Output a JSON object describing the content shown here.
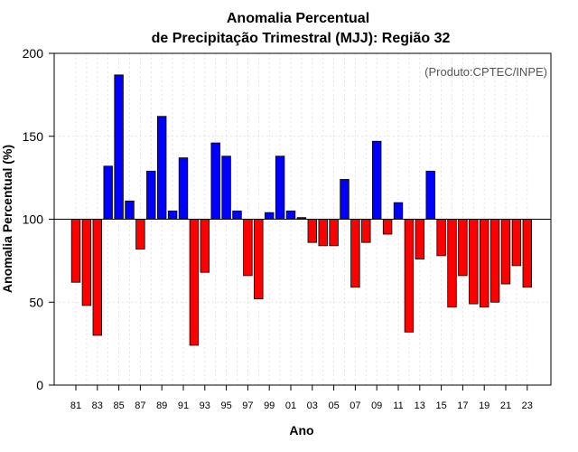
{
  "chart_data": {
    "type": "bar",
    "title": [
      "Anomalia Percentual",
      "de Precipitação Trimestral (MJJ): Região 32"
    ],
    "xlabel": "Ano",
    "ylabel": "Anomalia Percentual (%)",
    "credit": "(Produto:CPTEC/INPE)",
    "ylim": [
      0,
      200
    ],
    "yticks": [
      0,
      50,
      100,
      150,
      200
    ],
    "baseline": 100,
    "grid": true,
    "colors": {
      "above": "#0000ff",
      "below": "#ff0000"
    },
    "categories": [
      "81",
      "82",
      "83",
      "84",
      "85",
      "86",
      "87",
      "88",
      "89",
      "90",
      "91",
      "92",
      "93",
      "94",
      "95",
      "96",
      "97",
      "98",
      "99",
      "00",
      "01",
      "02",
      "03",
      "04",
      "05",
      "06",
      "07",
      "08",
      "09",
      "10",
      "11",
      "12",
      "13",
      "14",
      "15",
      "16",
      "17",
      "18",
      "19",
      "20",
      "21",
      "22",
      "23"
    ],
    "xtick_labels": [
      "81",
      "83",
      "85",
      "87",
      "89",
      "91",
      "93",
      "95",
      "97",
      "99",
      "01",
      "03",
      "05",
      "07",
      "09",
      "11",
      "13",
      "15",
      "17",
      "19",
      "21",
      "23"
    ],
    "values": [
      62,
      48,
      30,
      132,
      187,
      111,
      82,
      129,
      162,
      105,
      137,
      24,
      68,
      146,
      138,
      105,
      66,
      52,
      104,
      138,
      105,
      101,
      86,
      84,
      84,
      124,
      59,
      86,
      147,
      91,
      110,
      32,
      76,
      129,
      78,
      47,
      66,
      49,
      47,
      50,
      61,
      72,
      59
    ]
  }
}
